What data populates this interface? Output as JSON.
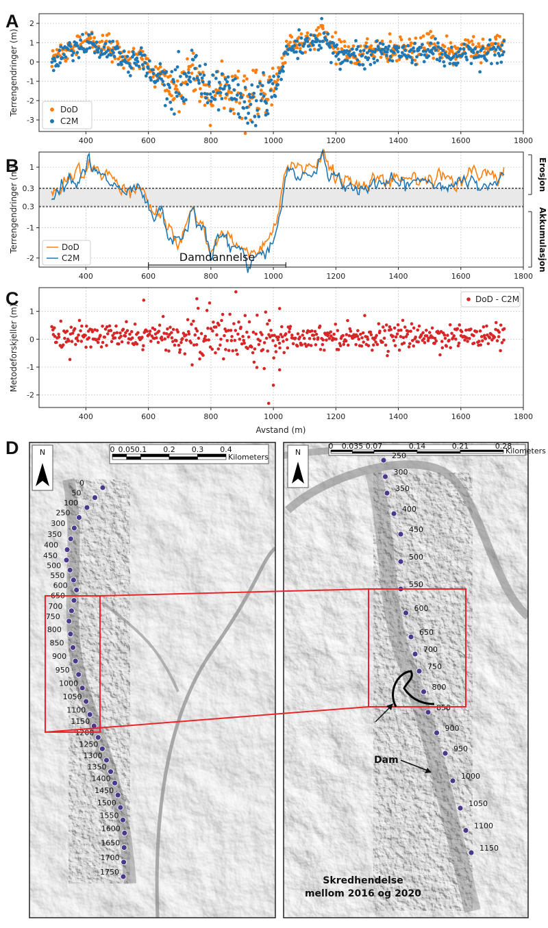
{
  "colors": {
    "dod": "#ff7f0e",
    "c2m": "#1f77b4",
    "diff": "#d62728",
    "dash": "#666666",
    "map_frame": "#e8262a",
    "dots": "#4b3a8c"
  },
  "chart_data": [
    {
      "panel": "A",
      "type": "scatter",
      "ylabel": "Terrengendringer (m)",
      "xlim": [
        250,
        1800
      ],
      "ylim": [
        -3.6,
        2.5
      ],
      "xticks": [
        400,
        600,
        800,
        1000,
        1200,
        1400,
        1600,
        1800
      ],
      "yticks": [
        -3,
        -2,
        -1,
        0,
        1,
        2
      ],
      "legend_position": "lower-left",
      "grid": true,
      "series": [
        {
          "name": "DoD",
          "color": "#ff7f0e"
        },
        {
          "name": "C2M",
          "color": "#1f77b4"
        }
      ],
      "profile": {
        "x": [
          290,
          320,
          350,
          380,
          400,
          410,
          420,
          450,
          480,
          500,
          520,
          540,
          560,
          580,
          600,
          620,
          640,
          660,
          680,
          700,
          720,
          740,
          760,
          780,
          800,
          820,
          840,
          860,
          880,
          900,
          920,
          940,
          960,
          980,
          1000,
          1020,
          1040,
          1060,
          1080,
          1100,
          1120,
          1140,
          1160,
          1180,
          1200,
          1220,
          1240,
          1260,
          1280,
          1300,
          1320,
          1340,
          1360,
          1380,
          1400,
          1420,
          1440,
          1460,
          1480,
          1500,
          1520,
          1540,
          1560,
          1580,
          1600,
          1620,
          1640,
          1660,
          1680,
          1700,
          1720,
          1740
        ],
        "dod": [
          0.1,
          0.5,
          0.8,
          0.9,
          1.0,
          1.5,
          1.0,
          0.7,
          0.7,
          0.5,
          0.2,
          0.1,
          0.3,
          0.2,
          -0.3,
          -0.6,
          -0.4,
          -1.0,
          -1.3,
          -1.5,
          -1.0,
          -0.2,
          -0.9,
          -1.1,
          -1.8,
          -1.3,
          -1.2,
          -1.4,
          -1.6,
          -1.6,
          -2.2,
          -1.8,
          -1.6,
          -1.5,
          -1.3,
          -0.5,
          0.9,
          1.0,
          0.9,
          1.0,
          1.0,
          1.2,
          1.6,
          1.0,
          0.7,
          0.6,
          0.6,
          0.4,
          0.4,
          0.6,
          0.6,
          0.7,
          0.5,
          0.6,
          0.6,
          0.5,
          0.6,
          0.6,
          0.7,
          0.8,
          0.8,
          0.6,
          0.5,
          0.3,
          0.6,
          0.9,
          0.8,
          0.6,
          0.8,
          0.7,
          0.8,
          1.0
        ],
        "c2m": [
          0.0,
          0.4,
          0.6,
          0.8,
          0.9,
          1.3,
          0.9,
          0.6,
          0.5,
          0.3,
          0.1,
          0.0,
          0.2,
          0.0,
          -0.4,
          -0.8,
          -0.5,
          -1.1,
          -1.4,
          -1.6,
          -1.1,
          -0.3,
          -1.0,
          -1.2,
          -1.9,
          -1.4,
          -1.3,
          -1.6,
          -1.7,
          -1.7,
          -2.4,
          -1.9,
          -1.8,
          -1.7,
          -1.4,
          -0.6,
          0.8,
          0.8,
          0.7,
          0.8,
          0.8,
          1.0,
          1.4,
          0.8,
          0.5,
          0.4,
          0.4,
          0.3,
          0.3,
          0.4,
          0.5,
          0.5,
          0.4,
          0.5,
          0.4,
          0.4,
          0.5,
          0.5,
          0.6,
          0.5,
          0.6,
          0.4,
          0.3,
          0.2,
          0.5,
          0.6,
          0.6,
          0.4,
          0.6,
          0.5,
          0.6,
          0.8
        ]
      }
    },
    {
      "panel": "B",
      "type": "line",
      "ylabel": "Terrengendringer (m)",
      "xlim": [
        250,
        1800
      ],
      "ylim": [
        -2.3,
        1.5
      ],
      "xticks": [
        400,
        600,
        800,
        1000,
        1200,
        1400,
        1600,
        1800
      ],
      "yticks": [
        -2,
        -1,
        1
      ],
      "threshold_labels": [
        "0.3",
        "0.3"
      ],
      "thresholds": [
        0.3,
        -0.3
      ],
      "legend_position": "lower-left",
      "grid": true,
      "series": [
        {
          "name": "DoD",
          "color": "#ff7f0e"
        },
        {
          "name": "C2M",
          "color": "#1f77b4"
        }
      ],
      "side_labels": {
        "upper": "Erosjon",
        "lower": "Akkumulasjon"
      },
      "annotation": {
        "text": "Damdannelse",
        "x_start": 600,
        "x_end": 1040
      }
    },
    {
      "panel": "C",
      "type": "scatter",
      "ylabel": "Metodeforskjeller (m)",
      "xlabel": "Avstand (m)",
      "xlim": [
        250,
        1800
      ],
      "ylim": [
        -2.45,
        1.85
      ],
      "xticks": [
        400,
        600,
        800,
        1000,
        1200,
        1400,
        1600,
        1800
      ],
      "yticks": [
        -2,
        -1,
        0,
        1
      ],
      "legend_position": "upper-right",
      "grid": true,
      "series": [
        {
          "name": "DoD - C2M",
          "color": "#d62728"
        }
      ],
      "notable_points": {
        "x": [
          585,
          755,
          880,
          985,
          1000,
          1020,
          1020
        ],
        "y": [
          1.4,
          1.45,
          1.7,
          -2.3,
          -1.65,
          1.1,
          -1.1
        ]
      }
    }
  ],
  "panels": {
    "A": "A",
    "B": "B",
    "C": "C",
    "D": "D"
  },
  "map": {
    "north_label": "N",
    "left_scale": {
      "labels": [
        "0",
        "0.05",
        "0.1",
        "0.2",
        "0.3",
        "0.4"
      ],
      "unit": "Kilometers"
    },
    "right_scale": {
      "labels": [
        "0",
        "0.035",
        "0.07",
        "0.14",
        "0.21",
        "0.28"
      ],
      "unit": "Kilometers"
    },
    "left_stations": [
      "0",
      "50",
      "100",
      "250",
      "300",
      "350",
      "400",
      "450",
      "500",
      "550",
      "600",
      "650",
      "700",
      "750",
      "800",
      "850",
      "900",
      "950",
      "1000",
      "1050",
      "1100",
      "1150",
      "1200",
      "1250",
      "1300",
      "1350",
      "1400",
      "1450",
      "1500",
      "1550",
      "1600",
      "1650",
      "1700",
      "1750"
    ],
    "right_stations": [
      "250",
      "300",
      "350",
      "400",
      "450",
      "500",
      "550",
      "600",
      "650",
      "700",
      "750",
      "800",
      "850",
      "900",
      "950",
      "1000",
      "1050",
      "1100",
      "1150"
    ],
    "annotations": {
      "dam": "Dam",
      "slide_line1": "Skredhendelse",
      "slide_line2": "mellom 2016 og 2020"
    }
  }
}
